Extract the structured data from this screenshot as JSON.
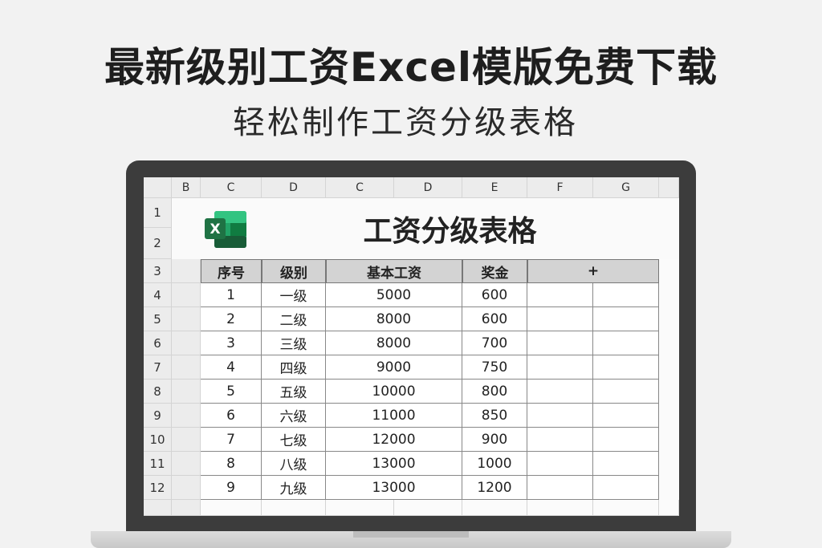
{
  "headline": "最新级别工资Excel模版免费下载",
  "subheadline": "轻松制作工资分级表格",
  "sheet": {
    "column_headers": [
      "B",
      "C",
      "D",
      "C",
      "D",
      "E",
      "F",
      "G"
    ],
    "row_headers": [
      "1",
      "2",
      "3",
      "4",
      "5",
      "6",
      "7",
      "8",
      "9",
      "10",
      "11",
      "12"
    ],
    "title": "工资分级表格",
    "logo_icon": "excel-icon",
    "logo_letter": "X",
    "brand_color": "#1f7244",
    "table_headers": [
      "序号",
      "级别",
      "基本工资",
      "奖金",
      "+"
    ],
    "rows": [
      [
        "1",
        "一级",
        "5000",
        "600"
      ],
      [
        "2",
        "二级",
        "8000",
        "600"
      ],
      [
        "3",
        "三级",
        "8000",
        "700"
      ],
      [
        "4",
        "四级",
        "9000",
        "750"
      ],
      [
        "5",
        "五级",
        "10000",
        "800"
      ],
      [
        "6",
        "六级",
        "11000",
        "850"
      ],
      [
        "7",
        "七级",
        "12000",
        "900"
      ],
      [
        "8",
        "八级",
        "13000",
        "1000"
      ],
      [
        "9",
        "九级",
        "13000",
        "1200"
      ]
    ]
  }
}
